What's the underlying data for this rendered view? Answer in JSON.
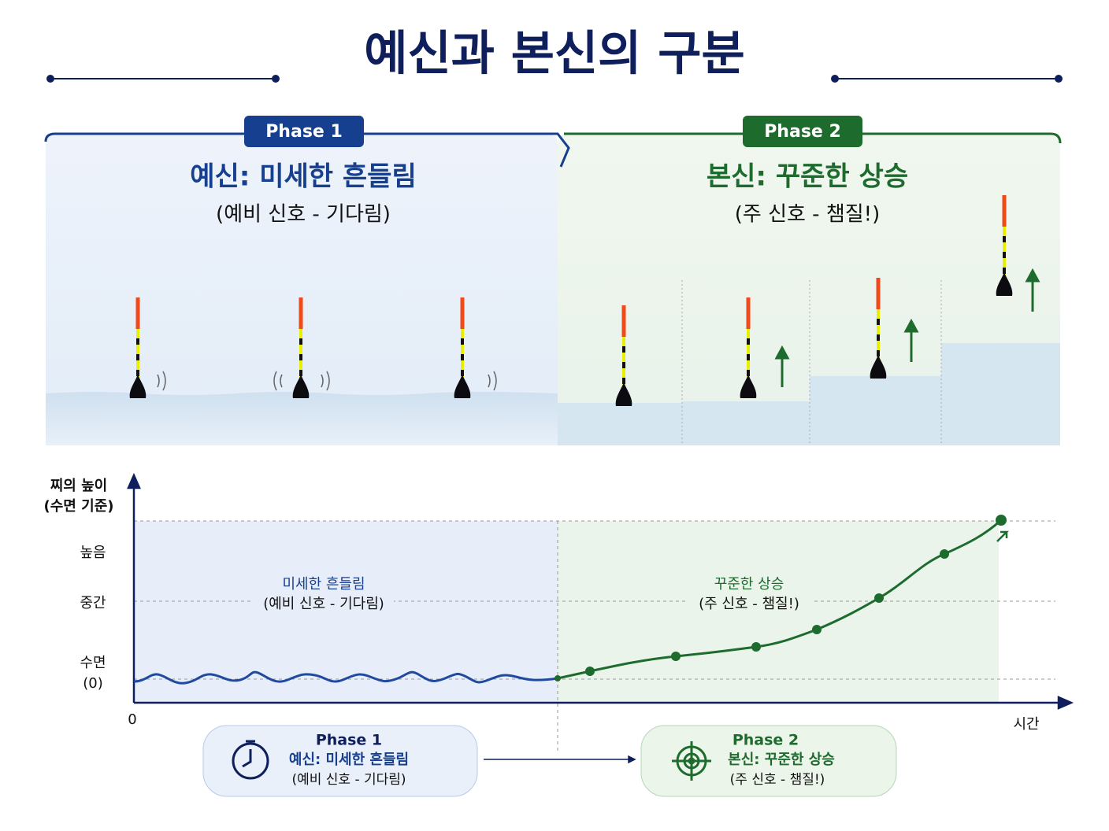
{
  "header": {
    "title": "예신과 본신의 구분"
  },
  "phase1": {
    "badge": "Phase 1",
    "heading": "예신: 미세한 흔들림",
    "subtitle": "(예비 신호 - 기다림)"
  },
  "phase2": {
    "badge": "Phase 2",
    "heading": "본신: 꾸준한 상승",
    "subtitle": "(주 신호 - 챔질!)"
  },
  "graph": {
    "y_axis_title": [
      "찌의 높이",
      "(수면 기준)"
    ],
    "y_labels": {
      "high": "높음",
      "mid": "중간",
      "surface": [
        "수면",
        "(0)"
      ]
    },
    "origin": "0",
    "x_axis_title": "시간",
    "region1": [
      "미세한 흔들림",
      "(예비 신호 - 기다림)"
    ],
    "region2": [
      "꾸준한 상승",
      "(주 신호 - 챔질!)"
    ]
  },
  "cards": [
    {
      "phase": "Phase 1",
      "heading": "예신: 미세한 흔들림",
      "subtitle": "(예비 신호 - 기다림)"
    },
    {
      "phase": "Phase 2",
      "heading": "본신: 꾸준한 상승",
      "subtitle": "(주 신호 - 챔질!)"
    }
  ]
}
